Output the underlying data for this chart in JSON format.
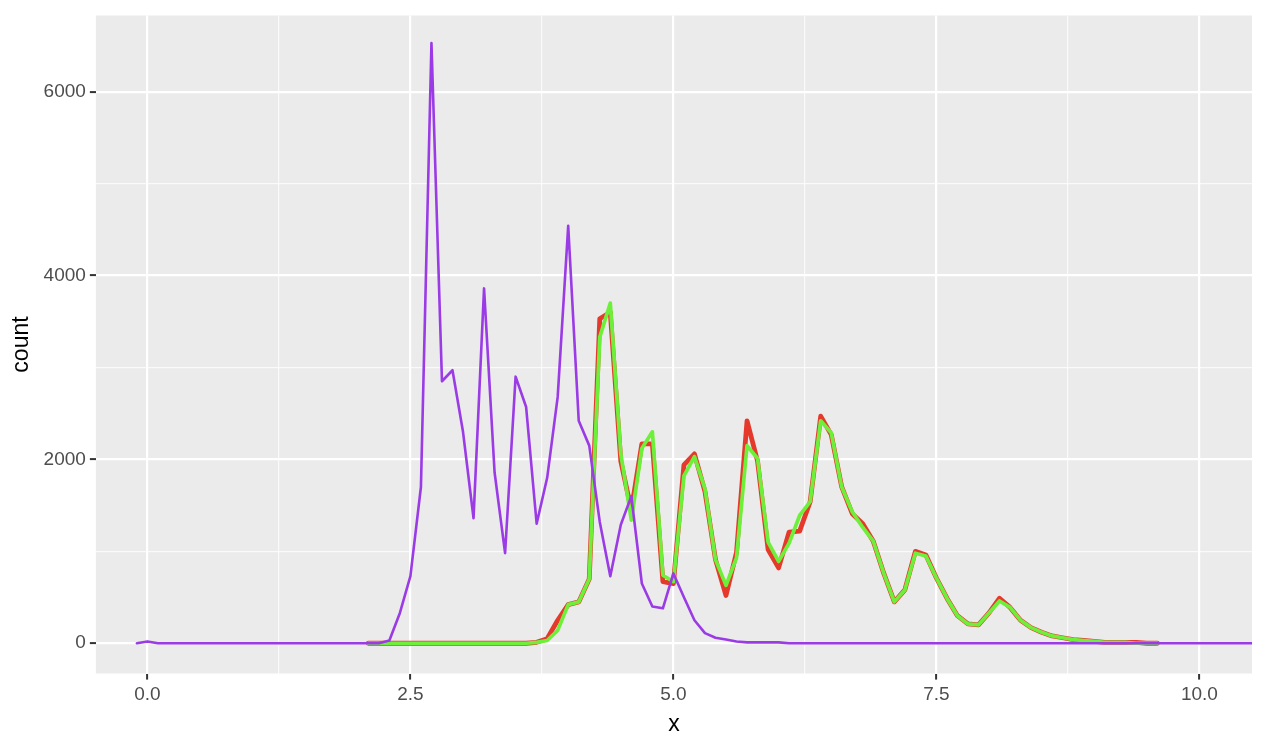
{
  "chart_data": {
    "type": "line",
    "xlabel": "x",
    "ylabel": "count",
    "x": [
      -0.1,
      0,
      0.1,
      0.2,
      0.3,
      0.4,
      0.5,
      0.6,
      0.7,
      0.8,
      0.9,
      1,
      1.1,
      1.2,
      1.3,
      1.4,
      1.5,
      1.6,
      1.7,
      1.8,
      1.9,
      2,
      2.1,
      2.2,
      2.3,
      2.4,
      2.5,
      2.6,
      2.7,
      2.8,
      2.9,
      3,
      3.1,
      3.2,
      3.3,
      3.4,
      3.5,
      3.6,
      3.7,
      3.8,
      3.9,
      4,
      4.1,
      4.2,
      4.3,
      4.4,
      4.5,
      4.6,
      4.7,
      4.8,
      4.9,
      5,
      5.1,
      5.2,
      5.3,
      5.4,
      5.5,
      5.6,
      5.7,
      5.8,
      5.9,
      6,
      6.1,
      6.2,
      6.3,
      6.4,
      6.5,
      6.6,
      6.7,
      6.8,
      6.9,
      7,
      7.1,
      7.2,
      7.3,
      7.4,
      7.5,
      7.6,
      7.7,
      7.8,
      7.9,
      8,
      8.1,
      8.2,
      8.3,
      8.4,
      8.5,
      8.6,
      8.7,
      8.8,
      8.9,
      9,
      9.1,
      9.2,
      9.3,
      9.4,
      9.5,
      9.6,
      9.7,
      9.8,
      9.9,
      10,
      10.1,
      10.2,
      10.3,
      10.4,
      10.5
    ],
    "series": [
      {
        "color": "#e53a2b",
        "values": [
          null,
          null,
          null,
          null,
          null,
          null,
          null,
          null,
          null,
          null,
          null,
          null,
          null,
          null,
          null,
          null,
          null,
          null,
          null,
          null,
          null,
          null,
          0,
          0,
          0,
          0,
          0,
          0,
          0,
          0,
          0,
          0,
          0,
          0,
          0,
          0,
          0,
          0,
          10,
          50,
          250,
          420,
          450,
          700,
          3530,
          3600,
          1980,
          1450,
          2170,
          2170,
          670,
          650,
          1940,
          2060,
          1650,
          910,
          520,
          990,
          2420,
          1980,
          1020,
          820,
          1210,
          1220,
          1540,
          2470,
          2270,
          1700,
          1410,
          1300,
          1110,
          760,
          450,
          580,
          1000,
          960,
          710,
          490,
          300,
          210,
          200,
          330,
          490,
          390,
          250,
          170,
          120,
          80,
          60,
          40,
          30,
          20,
          10,
          10,
          10,
          10,
          0,
          0,
          null,
          null,
          null,
          null,
          null,
          null,
          null,
          null,
          null
        ]
      },
      {
        "color": "#6ef03a",
        "values": [
          null,
          null,
          null,
          null,
          null,
          null,
          null,
          null,
          null,
          null,
          null,
          null,
          null,
          null,
          null,
          null,
          null,
          null,
          null,
          null,
          null,
          null,
          0,
          0,
          0,
          0,
          0,
          0,
          0,
          0,
          0,
          0,
          0,
          0,
          0,
          0,
          0,
          0,
          10,
          30,
          140,
          420,
          450,
          700,
          3330,
          3700,
          2060,
          1340,
          2120,
          2300,
          740,
          670,
          1820,
          2030,
          1680,
          910,
          630,
          930,
          2150,
          2010,
          1100,
          890,
          1090,
          1390,
          1540,
          2420,
          2290,
          1700,
          1430,
          1260,
          1110,
          760,
          450,
          580,
          980,
          950,
          710,
          490,
          300,
          210,
          200,
          330,
          460,
          390,
          250,
          170,
          120,
          80,
          60,
          40,
          30,
          20,
          10,
          10,
          10,
          0,
          0,
          0,
          null,
          null,
          null,
          null,
          null,
          null,
          null,
          null,
          null
        ]
      },
      {
        "color": "#9a3be6",
        "values": [
          0,
          20,
          0,
          0,
          0,
          0,
          0,
          0,
          0,
          0,
          0,
          0,
          0,
          0,
          0,
          0,
          0,
          0,
          0,
          0,
          0,
          0,
          0,
          0,
          30,
          330,
          730,
          1700,
          6530,
          2850,
          2970,
          2300,
          1360,
          3860,
          1860,
          980,
          2900,
          2570,
          1300,
          1800,
          2680,
          4540,
          2420,
          2150,
          1320,
          730,
          1290,
          1600,
          650,
          400,
          380,
          760,
          500,
          250,
          110,
          60,
          40,
          20,
          10,
          10,
          10,
          10,
          0,
          0,
          0,
          0,
          0,
          0,
          0,
          0,
          0,
          0,
          0,
          0,
          0,
          0,
          0,
          0,
          0,
          0,
          0,
          0,
          0,
          0,
          0,
          0,
          0,
          0,
          0,
          0,
          0,
          0,
          0,
          0,
          0,
          0,
          0,
          0,
          0,
          0,
          0,
          0,
          0,
          0,
          0,
          0,
          0
        ]
      }
    ],
    "xlim": [
      -0.49,
      10.5
    ],
    "ylim": [
      -330,
      6830
    ],
    "xticks": [
      {
        "value": 0,
        "label": "0.0"
      },
      {
        "value": 1.25,
        "label": null
      },
      {
        "value": 2.5,
        "label": "2.5"
      },
      {
        "value": 3.75,
        "label": null
      },
      {
        "value": 5,
        "label": "5.0"
      },
      {
        "value": 6.25,
        "label": null
      },
      {
        "value": 7.5,
        "label": "7.5"
      },
      {
        "value": 8.75,
        "label": null
      },
      {
        "value": 10,
        "label": "10.0"
      }
    ],
    "yticks": [
      0,
      {
        "value": 1000,
        "label": null
      },
      2000,
      {
        "value": 3000,
        "label": null
      },
      4000,
      {
        "value": 5000,
        "label": null
      },
      6000
    ],
    "grid": true,
    "legend": false,
    "marker": "none",
    "line_style": "solid"
  }
}
